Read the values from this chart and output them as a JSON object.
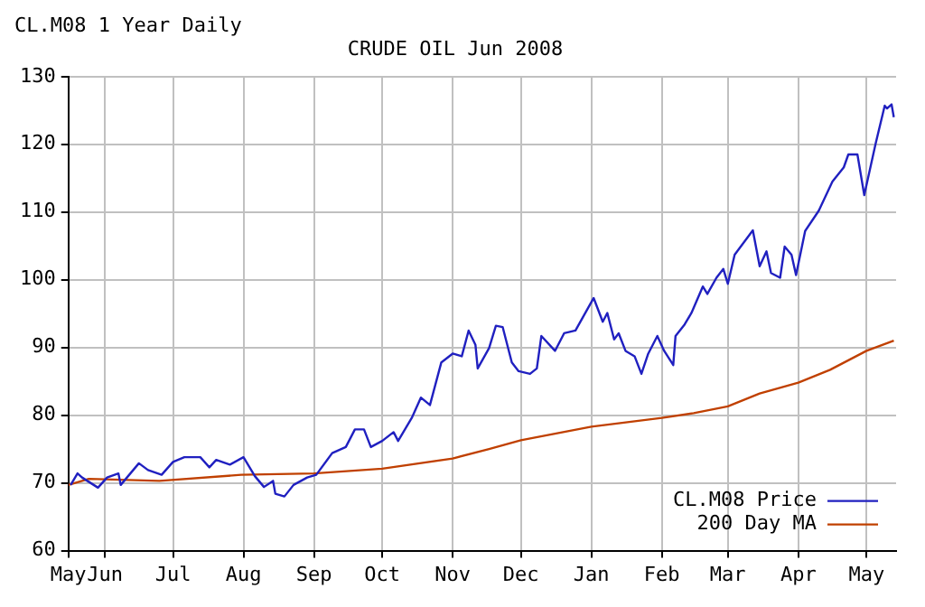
{
  "chart_data": {
    "type": "line",
    "title": "CL.M08 1 Year Daily",
    "subtitle": "CRUDE OIL Jun 2008",
    "xlim": [
      "2007-05-16",
      "2008-05-14"
    ],
    "xticks": [
      {
        "value": "2007-05-16",
        "label": "May"
      },
      {
        "value": "2007-06-01",
        "label": "Jun"
      },
      {
        "value": "2007-07-01",
        "label": "Jul"
      },
      {
        "value": "2007-08-01",
        "label": "Aug"
      },
      {
        "value": "2007-09-01",
        "label": "Sep"
      },
      {
        "value": "2007-10-01",
        "label": "Oct"
      },
      {
        "value": "2007-11-01",
        "label": "Nov"
      },
      {
        "value": "2007-12-01",
        "label": "Dec"
      },
      {
        "value": "2008-01-01",
        "label": "Jan"
      },
      {
        "value": "2008-02-01",
        "label": "Feb"
      },
      {
        "value": "2008-03-01",
        "label": "Mar"
      },
      {
        "value": "2008-04-01",
        "label": "Apr"
      },
      {
        "value": "2008-05-01",
        "label": "May"
      }
    ],
    "ylim": [
      60,
      130
    ],
    "yticks": [
      60,
      70,
      80,
      90,
      100,
      110,
      120,
      130
    ],
    "grid": true,
    "legend": "bottom right",
    "marker": "none",
    "line_style": "solid",
    "series": [
      {
        "name": "CL.M08 Price",
        "color": "#2020c0",
        "x": [
          "2007-05-17",
          "2007-05-20",
          "2007-05-22",
          "2007-05-29",
          "2007-06-02",
          "2007-06-07",
          "2007-06-08",
          "2007-06-16",
          "2007-06-20",
          "2007-06-26",
          "2007-07-01",
          "2007-07-06",
          "2007-07-13",
          "2007-07-17",
          "2007-07-20",
          "2007-07-26",
          "2007-08-01",
          "2007-08-06",
          "2007-08-10",
          "2007-08-14",
          "2007-08-15",
          "2007-08-19",
          "2007-08-23",
          "2007-08-29",
          "2007-09-02",
          "2007-09-09",
          "2007-09-15",
          "2007-09-19",
          "2007-09-23",
          "2007-09-26",
          "2007-10-01",
          "2007-10-06",
          "2007-10-08",
          "2007-10-14",
          "2007-10-18",
          "2007-10-22",
          "2007-10-27",
          "2007-11-01",
          "2007-11-05",
          "2007-11-08",
          "2007-11-11",
          "2007-11-12",
          "2007-11-17",
          "2007-11-20",
          "2007-11-23",
          "2007-11-27",
          "2007-11-30",
          "2007-12-05",
          "2007-12-08",
          "2007-12-10",
          "2007-12-16",
          "2007-12-20",
          "2007-12-25",
          "2007-12-28",
          "2008-01-02",
          "2008-01-06",
          "2008-01-08",
          "2008-01-11",
          "2008-01-13",
          "2008-01-16",
          "2008-01-20",
          "2008-01-23",
          "2008-01-26",
          "2008-01-30",
          "2008-02-02",
          "2008-02-06",
          "2008-02-07",
          "2008-02-11",
          "2008-02-14",
          "2008-02-19",
          "2008-02-21",
          "2008-02-25",
          "2008-02-28",
          "2008-03-01",
          "2008-03-04",
          "2008-03-12",
          "2008-03-15",
          "2008-03-18",
          "2008-03-20",
          "2008-03-24",
          "2008-03-26",
          "2008-03-29",
          "2008-03-31",
          "2008-04-04",
          "2008-04-10",
          "2008-04-16",
          "2008-04-21",
          "2008-04-23",
          "2008-04-27",
          "2008-04-30",
          "2008-05-05",
          "2008-05-09",
          "2008-05-10",
          "2008-05-12",
          "2008-05-13"
        ],
        "values": [
          69.7,
          71.4,
          70.8,
          69.3,
          70.8,
          71.4,
          69.7,
          72.9,
          71.9,
          71.2,
          73.1,
          73.8,
          73.8,
          72.3,
          73.4,
          72.7,
          73.8,
          71.0,
          69.4,
          70.3,
          68.4,
          68.0,
          69.7,
          70.8,
          71.2,
          74.4,
          75.3,
          77.9,
          77.9,
          75.3,
          76.2,
          77.5,
          76.2,
          79.6,
          82.6,
          81.5,
          87.8,
          89.1,
          88.7,
          92.5,
          90.4,
          86.9,
          89.9,
          93.2,
          93.0,
          87.8,
          86.5,
          86.1,
          86.9,
          91.7,
          89.5,
          92.1,
          92.5,
          94.3,
          97.3,
          93.8,
          95.1,
          91.2,
          92.1,
          89.5,
          88.7,
          86.1,
          89.1,
          91.7,
          89.5,
          87.4,
          91.7,
          93.4,
          95.1,
          99.0,
          97.9,
          100.3,
          101.6,
          99.4,
          103.7,
          107.3,
          102.0,
          104.2,
          101.0,
          100.3,
          104.9,
          103.7,
          100.7,
          107.2,
          110.2,
          114.5,
          116.6,
          118.5,
          118.5,
          112.5,
          120.1,
          125.7,
          125.3,
          125.9,
          124.0
        ]
      },
      {
        "name": "200 Day MA",
        "color": "#c04000",
        "x": [
          "2007-05-16",
          "2007-05-25",
          "2007-06-25",
          "2007-07-31",
          "2007-09-01",
          "2007-10-01",
          "2007-11-01",
          "2007-11-17",
          "2007-12-01",
          "2008-01-01",
          "2008-02-01",
          "2008-02-15",
          "2008-03-01",
          "2008-03-15",
          "2008-04-01",
          "2008-04-15",
          "2008-05-01",
          "2008-05-13"
        ],
        "values": [
          69.7,
          70.6,
          70.3,
          71.2,
          71.4,
          72.1,
          73.6,
          75.0,
          76.3,
          78.3,
          79.6,
          80.3,
          81.3,
          83.2,
          84.8,
          86.7,
          89.5,
          91.0
        ]
      }
    ]
  }
}
